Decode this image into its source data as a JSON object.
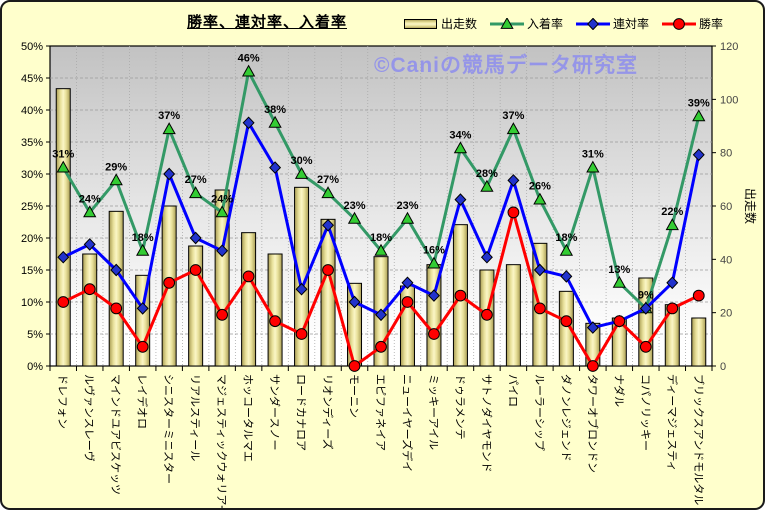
{
  "window": {
    "background": "#FFFFCC",
    "border_color": "#1a1a1a"
  },
  "title": "勝率、連対率、入着率",
  "watermark": {
    "text": "©Caniの競馬データ研究室",
    "color": "#9595E8"
  },
  "legend": [
    {
      "label": "出走数",
      "type": "bar",
      "bar_color": "#EDE79E",
      "bar_edge": "#A89C54"
    },
    {
      "label": "入着率",
      "type": "triangle",
      "line_color": "#339966",
      "marker_color": "#33CC33"
    },
    {
      "label": "連対率",
      "type": "diamond",
      "line_color": "#0000FF",
      "marker_color": "#2233CC"
    },
    {
      "label": "勝率",
      "type": "circle",
      "line_color": "#FF0000",
      "marker_color": "#FF0000"
    }
  ],
  "chart_data": {
    "type": "combo",
    "title": "勝率、連対率、入着率",
    "grid": true,
    "legend_position": "top-right",
    "categories": [
      "ドレフォン",
      "ルヴァンスレーヴ",
      "マインドユアビスケッツ",
      "レイデオロ",
      "シニスターミニスター",
      "リアルスティール",
      "マジェスティックウォリアー",
      "ホッコータルマエ",
      "サンダースノー",
      "ロードカナロア",
      "リオンディーズ",
      "モーニン",
      "エピファネイア",
      "ニューイヤーズデイ",
      "ミッキーアイル",
      "ドゥラメンテ",
      "サトノダイヤモンド",
      "パイロ",
      "ルーラーシップ",
      "ダノンレジェンド",
      "タワーオブロンドン",
      "ナダル",
      "コパノリッキー",
      "ディーマジェスティ",
      "ブリックスアンドモルタル"
    ],
    "series": [
      {
        "name": "出走数",
        "type": "bar",
        "axis": "right",
        "values": [
          104,
          42,
          58,
          34,
          60,
          45,
          66,
          50,
          42,
          67,
          55,
          31,
          41,
          30,
          38,
          53,
          36,
          38,
          46,
          28,
          16,
          18,
          33,
          23,
          18
        ]
      },
      {
        "name": "入着率",
        "type": "line",
        "marker": "triangle",
        "axis": "left",
        "unit": "%",
        "labels_shown": true,
        "values": [
          31,
          24,
          29,
          18,
          37,
          27,
          24,
          46,
          38,
          30,
          27,
          23,
          18,
          23,
          16,
          34,
          28,
          37,
          26,
          18,
          31,
          13,
          9,
          22,
          39
        ]
      },
      {
        "name": "連対率",
        "type": "line",
        "marker": "diamond",
        "axis": "left",
        "unit": "%",
        "labels_shown": false,
        "values": [
          17,
          19,
          15,
          9,
          30,
          20,
          18,
          38,
          31,
          12,
          22,
          10,
          8,
          13,
          11,
          26,
          17,
          29,
          15,
          14,
          6,
          7,
          9,
          13,
          33
        ]
      },
      {
        "name": "勝率",
        "type": "line",
        "marker": "circle",
        "axis": "left",
        "unit": "%",
        "labels_shown": false,
        "values": [
          10,
          12,
          9,
          3,
          13,
          15,
          8,
          14,
          7,
          5,
          15,
          0,
          3,
          10,
          5,
          11,
          8,
          24,
          9,
          7,
          0,
          7,
          3,
          9,
          11
        ]
      }
    ],
    "left_axis": {
      "min": 0,
      "max": 50,
      "step": 5,
      "suffix": "%"
    },
    "right_axis": {
      "min": 0,
      "max": 120,
      "step": 20,
      "label": "出走数"
    }
  }
}
